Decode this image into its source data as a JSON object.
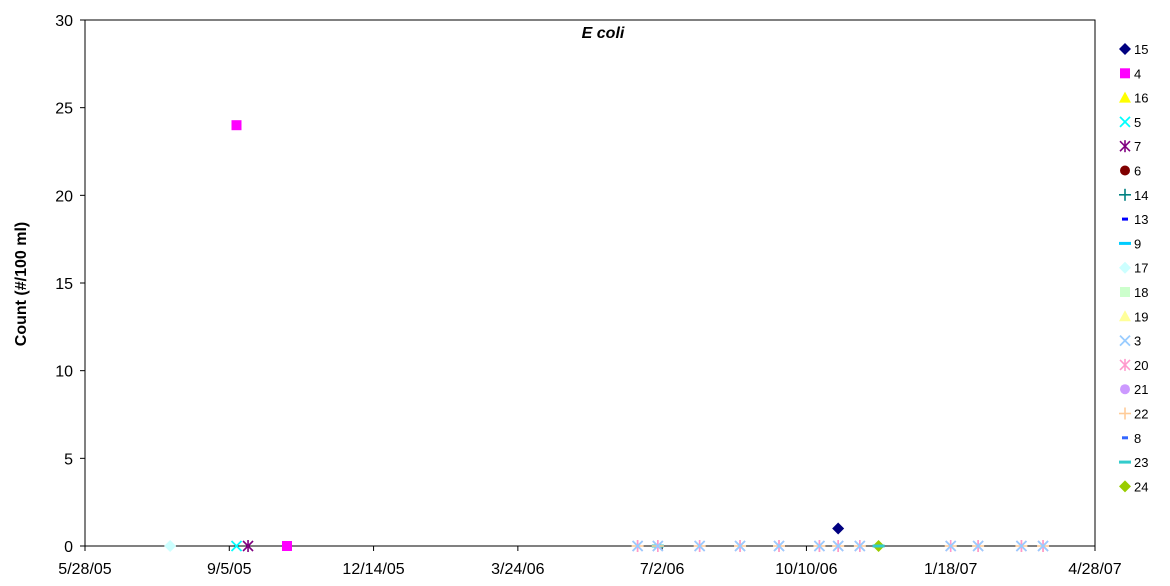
{
  "chart_data": {
    "type": "scatter",
    "title": "E coli",
    "xlabel": "",
    "ylabel": "Count (#/100 ml)",
    "x_is_date": true,
    "xlim": [
      "2005-05-28",
      "2007-04-28"
    ],
    "ylim": [
      0,
      30
    ],
    "yticks": [
      0,
      5,
      10,
      15,
      20,
      25,
      30
    ],
    "xticks": [
      "2005-05-28",
      "2005-09-05",
      "2005-12-14",
      "2006-03-24",
      "2006-07-02",
      "2006-10-10",
      "2007-01-18",
      "2007-04-28"
    ],
    "xtick_labels": [
      "5/28/05",
      "9/5/05",
      "12/14/05",
      "3/24/06",
      "7/2/06",
      "10/10/06",
      "1/18/07",
      "4/28/07"
    ],
    "grid": false,
    "legend_position": "right",
    "series": [
      {
        "name": "15",
        "marker": "diamond",
        "color": "#000080",
        "points": [
          [
            "2006-11-01",
            1
          ]
        ]
      },
      {
        "name": "4",
        "marker": "square",
        "color": "#ff00ff",
        "points": [
          [
            "2005-09-10",
            24
          ],
          [
            "2005-10-15",
            0
          ]
        ]
      },
      {
        "name": "16",
        "marker": "triangle",
        "color": "#ffff00",
        "points": []
      },
      {
        "name": "5",
        "marker": "x",
        "color": "#00ffff",
        "points": [
          [
            "2005-09-10",
            0
          ]
        ]
      },
      {
        "name": "7",
        "marker": "star",
        "color": "#800080",
        "points": [
          [
            "2005-09-18",
            0
          ]
        ]
      },
      {
        "name": "6",
        "marker": "circle",
        "color": "#800000",
        "points": []
      },
      {
        "name": "14",
        "marker": "plus",
        "color": "#008080",
        "points": []
      },
      {
        "name": "13",
        "marker": "dash",
        "color": "#0000ff",
        "points": [
          [
            "2005-10-15",
            0
          ]
        ]
      },
      {
        "name": "9",
        "marker": "longdash",
        "color": "#00ccff",
        "points": []
      },
      {
        "name": "17",
        "marker": "diamond",
        "color": "#ccffff",
        "points": [
          [
            "2005-07-26",
            0
          ]
        ]
      },
      {
        "name": "18",
        "marker": "square",
        "color": "#ccffcc",
        "points": []
      },
      {
        "name": "19",
        "marker": "triangle",
        "color": "#ffff99",
        "points": []
      },
      {
        "name": "3",
        "marker": "x",
        "color": "#99ccff",
        "points": [
          [
            "2006-06-15",
            0
          ],
          [
            "2006-06-29",
            0
          ],
          [
            "2006-07-28",
            0
          ],
          [
            "2006-08-25",
            0
          ],
          [
            "2006-09-21",
            0
          ],
          [
            "2006-10-19",
            0
          ],
          [
            "2006-11-01",
            0
          ],
          [
            "2006-11-16",
            0
          ],
          [
            "2007-01-18",
            0
          ],
          [
            "2007-02-06",
            0
          ],
          [
            "2007-03-08",
            0
          ],
          [
            "2007-03-23",
            0
          ]
        ]
      },
      {
        "name": "20",
        "marker": "star",
        "color": "#ff99cc",
        "points": [
          [
            "2006-06-15",
            0
          ],
          [
            "2006-06-29",
            0
          ],
          [
            "2006-07-28",
            0
          ],
          [
            "2006-08-25",
            0
          ],
          [
            "2006-09-21",
            0
          ],
          [
            "2006-10-19",
            0
          ],
          [
            "2006-11-01",
            0
          ],
          [
            "2006-11-16",
            0
          ],
          [
            "2007-01-18",
            0
          ],
          [
            "2007-02-06",
            0
          ],
          [
            "2007-03-08",
            0
          ],
          [
            "2007-03-23",
            0
          ]
        ]
      },
      {
        "name": "21",
        "marker": "circle",
        "color": "#cc99ff",
        "points": []
      },
      {
        "name": "22",
        "marker": "plus",
        "color": "#ffcc99",
        "points": [
          [
            "2006-06-15",
            0
          ],
          [
            "2006-06-29",
            0
          ],
          [
            "2006-07-28",
            0
          ],
          [
            "2006-08-25",
            0
          ],
          [
            "2006-09-21",
            0
          ],
          [
            "2006-10-19",
            0
          ],
          [
            "2006-11-01",
            0
          ],
          [
            "2006-11-16",
            0
          ],
          [
            "2007-01-18",
            0
          ],
          [
            "2007-02-06",
            0
          ],
          [
            "2007-03-08",
            0
          ],
          [
            "2007-03-23",
            0
          ]
        ]
      },
      {
        "name": "8",
        "marker": "dash",
        "color": "#3366ff",
        "points": []
      },
      {
        "name": "23",
        "marker": "longdash",
        "color": "#33cccc",
        "points": [
          [
            "2006-06-29",
            0
          ],
          [
            "2006-11-29",
            0
          ]
        ]
      },
      {
        "name": "24",
        "marker": "diamond",
        "color": "#99cc00",
        "points": [
          [
            "2006-11-29",
            0
          ]
        ]
      }
    ]
  }
}
